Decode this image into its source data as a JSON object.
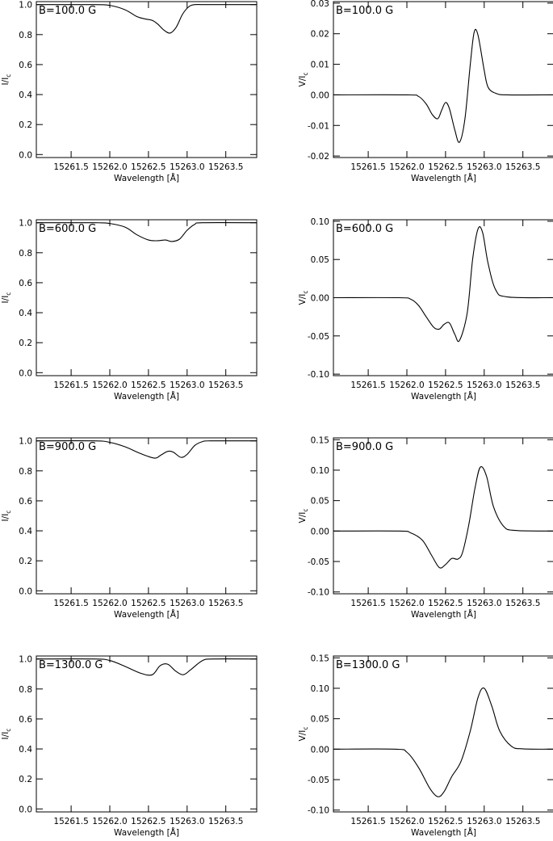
{
  "chart_data": [
    {
      "type": "line",
      "title": "B=100.0 G",
      "xlabel": "Wavelength [Å]",
      "ylabel": "I/I_c",
      "ylabel_main": "I/I",
      "ylabel_sub": "c",
      "xlim": [
        15261.05,
        15263.9
      ],
      "ylim": [
        -0.02,
        1.02
      ],
      "xticks": [
        "15261.5",
        "15262.0",
        "15262.5",
        "15263.0",
        "15263.5"
      ],
      "yticks": [
        "0.0",
        "0.2",
        "0.4",
        "0.6",
        "0.8",
        "1.0"
      ],
      "series": [
        {
          "x": [
            15261.05,
            15261.8,
            15262.0,
            15262.2,
            15262.35,
            15262.45,
            15262.55,
            15262.62,
            15262.7,
            15262.78,
            15262.86,
            15262.94,
            15263.02,
            15263.1,
            15263.25,
            15263.9
          ],
          "values": [
            1.0,
            1.0,
            0.995,
            0.965,
            0.92,
            0.905,
            0.895,
            0.87,
            0.83,
            0.81,
            0.85,
            0.935,
            0.985,
            1.0,
            1.0,
            1.0
          ]
        }
      ]
    },
    {
      "type": "line",
      "title": "B=100.0 G",
      "xlabel": "Wavelength [Å]",
      "ylabel": "V/I_c",
      "ylabel_main": "V/I",
      "ylabel_sub": "c",
      "xlim": [
        15261.05,
        15263.9
      ],
      "ylim": [
        -0.0205,
        0.0305
      ],
      "xticks": [
        "15261.5",
        "15262.0",
        "15262.5",
        "15263.0",
        "15263.5"
      ],
      "yticks": [
        "-0.02",
        "-0.01",
        "0.00",
        "0.01",
        "0.02",
        "0.03"
      ],
      "series": [
        {
          "x": [
            15261.05,
            15262.0,
            15262.15,
            15262.25,
            15262.33,
            15262.4,
            15262.45,
            15262.5,
            15262.55,
            15262.62,
            15262.68,
            15262.75,
            15262.82,
            15262.87,
            15262.92,
            15263.0,
            15263.05,
            15263.15,
            15263.3,
            15263.9
          ],
          "values": [
            0.0,
            0.0,
            -0.0005,
            -0.003,
            -0.0065,
            -0.0078,
            -0.005,
            -0.0025,
            -0.0045,
            -0.0115,
            -0.0155,
            -0.008,
            0.01,
            0.0205,
            0.0195,
            0.008,
            0.0025,
            0.0005,
            0.0,
            0.0
          ]
        }
      ]
    },
    {
      "type": "line",
      "title": "B=600.0 G",
      "xlabel": "Wavelength [Å]",
      "ylabel": "I/I_c",
      "ylabel_main": "I/I",
      "ylabel_sub": "c",
      "xlim": [
        15261.05,
        15263.9
      ],
      "ylim": [
        -0.02,
        1.02
      ],
      "xticks": [
        "15261.5",
        "15262.0",
        "15262.5",
        "15263.0",
        "15263.5"
      ],
      "yticks": [
        "0.0",
        "0.2",
        "0.4",
        "0.6",
        "0.8",
        "1.0"
      ],
      "series": [
        {
          "x": [
            15261.05,
            15261.8,
            15262.0,
            15262.2,
            15262.35,
            15262.5,
            15262.62,
            15262.72,
            15262.8,
            15262.9,
            15263.0,
            15263.1,
            15263.2,
            15263.9
          ],
          "values": [
            1.0,
            1.0,
            0.995,
            0.97,
            0.92,
            0.885,
            0.88,
            0.885,
            0.875,
            0.89,
            0.95,
            0.99,
            1.0,
            1.0
          ]
        }
      ]
    },
    {
      "type": "line",
      "title": "B=600.0 G",
      "xlabel": "Wavelength [Å]",
      "ylabel": "V/I_c",
      "ylabel_main": "V/I",
      "ylabel_sub": "c",
      "xlim": [
        15261.05,
        15263.9
      ],
      "ylim": [
        -0.102,
        0.102
      ],
      "xticks": [
        "15261.5",
        "15262.0",
        "15262.5",
        "15263.0",
        "15263.5"
      ],
      "yticks": [
        "-0.10",
        "-0.05",
        "0.00",
        "0.05",
        "0.10"
      ],
      "series": [
        {
          "x": [
            15261.05,
            15261.9,
            15262.05,
            15262.15,
            15262.25,
            15262.35,
            15262.42,
            15262.48,
            15262.55,
            15262.62,
            15262.68,
            15262.78,
            15262.85,
            15262.92,
            15262.98,
            15263.05,
            15263.15,
            15263.3,
            15263.9
          ],
          "values": [
            0.0,
            0.0,
            -0.002,
            -0.01,
            -0.025,
            -0.039,
            -0.041,
            -0.035,
            -0.033,
            -0.048,
            -0.056,
            -0.02,
            0.05,
            0.09,
            0.085,
            0.045,
            0.01,
            0.001,
            0.0
          ]
        }
      ]
    },
    {
      "type": "line",
      "title": "B=900.0 G",
      "xlabel": "Wavelength [Å]",
      "ylabel": "I/I_c",
      "ylabel_main": "I/I",
      "ylabel_sub": "c",
      "xlim": [
        15261.05,
        15263.9
      ],
      "ylim": [
        -0.02,
        1.02
      ],
      "xticks": [
        "15261.5",
        "15262.0",
        "15262.5",
        "15263.0",
        "15263.5"
      ],
      "yticks": [
        "0.0",
        "0.2",
        "0.4",
        "0.6",
        "0.8",
        "1.0"
      ],
      "series": [
        {
          "x": [
            15261.05,
            15261.8,
            15262.0,
            15262.2,
            15262.4,
            15262.58,
            15262.66,
            15262.75,
            15262.82,
            15262.92,
            15263.0,
            15263.1,
            15263.2,
            15263.3,
            15263.9
          ],
          "values": [
            1.0,
            1.0,
            0.99,
            0.96,
            0.915,
            0.885,
            0.905,
            0.93,
            0.925,
            0.89,
            0.91,
            0.97,
            0.995,
            1.0,
            1.0
          ]
        }
      ]
    },
    {
      "type": "line",
      "title": "B=900.0 G",
      "xlabel": "Wavelength [Å]",
      "ylabel": "V/I_c",
      "ylabel_main": "V/I",
      "ylabel_sub": "c",
      "xlim": [
        15261.05,
        15263.9
      ],
      "ylim": [
        -0.103,
        0.153
      ],
      "xticks": [
        "15261.5",
        "15262.0",
        "15262.5",
        "15263.0",
        "15263.5"
      ],
      "yticks": [
        "-0.10",
        "-0.05",
        "0.00",
        "0.05",
        "0.10",
        "0.15"
      ],
      "series": [
        {
          "x": [
            15261.05,
            15261.9,
            15262.05,
            15262.2,
            15262.32,
            15262.42,
            15262.5,
            15262.58,
            15262.66,
            15262.72,
            15262.8,
            15262.88,
            15262.95,
            15263.03,
            15263.12,
            15263.25,
            15263.4,
            15263.9
          ],
          "values": [
            0.0,
            0.0,
            -0.003,
            -0.015,
            -0.04,
            -0.06,
            -0.055,
            -0.045,
            -0.046,
            -0.035,
            0.01,
            0.07,
            0.105,
            0.09,
            0.04,
            0.008,
            0.001,
            0.0
          ]
        }
      ]
    },
    {
      "type": "line",
      "title": "B=1300.0 G",
      "xlabel": "Wavelength [Å]",
      "ylabel": "I/I_c",
      "ylabel_main": "I/I",
      "ylabel_sub": "c",
      "xlim": [
        15261.05,
        15263.9
      ],
      "ylim": [
        -0.02,
        1.02
      ],
      "xticks": [
        "15261.5",
        "15262.0",
        "15262.5",
        "15263.0",
        "15263.5"
      ],
      "yticks": [
        "0.0",
        "0.2",
        "0.4",
        "0.6",
        "0.8",
        "1.0"
      ],
      "series": [
        {
          "x": [
            15261.05,
            15261.8,
            15262.0,
            15262.2,
            15262.4,
            15262.55,
            15262.65,
            15262.75,
            15262.85,
            15262.95,
            15263.05,
            15263.2,
            15263.35,
            15263.9
          ],
          "values": [
            1.0,
            1.0,
            0.99,
            0.95,
            0.905,
            0.895,
            0.955,
            0.965,
            0.92,
            0.895,
            0.93,
            0.99,
            1.0,
            1.0
          ]
        }
      ]
    },
    {
      "type": "line",
      "title": "B=1300.0 G",
      "xlabel": "Wavelength [Å]",
      "ylabel": "V/I_c",
      "ylabel_main": "V/I",
      "ylabel_sub": "c",
      "xlim": [
        15261.05,
        15263.9
      ],
      "ylim": [
        -0.103,
        0.153
      ],
      "xticks": [
        "15261.5",
        "15262.0",
        "15262.5",
        "15263.0",
        "15263.5"
      ],
      "yticks": [
        "-0.10",
        "-0.05",
        "0.00",
        "0.05",
        "0.10",
        "0.15"
      ],
      "series": [
        {
          "x": [
            15261.05,
            15261.85,
            15262.0,
            15262.15,
            15262.3,
            15262.4,
            15262.48,
            15262.58,
            15262.7,
            15262.82,
            15262.92,
            15263.0,
            15263.1,
            15263.2,
            15263.35,
            15263.5,
            15263.9
          ],
          "values": [
            0.0,
            0.0,
            -0.005,
            -0.03,
            -0.065,
            -0.078,
            -0.07,
            -0.045,
            -0.02,
            0.03,
            0.085,
            0.1,
            0.07,
            0.03,
            0.005,
            0.0005,
            0.0
          ]
        }
      ]
    }
  ]
}
